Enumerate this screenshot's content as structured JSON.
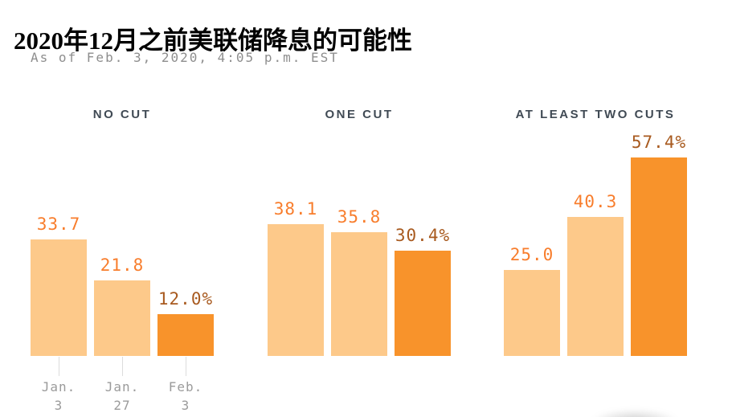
{
  "page": {
    "title": "2020年12月之前美联储降息的可能性",
    "subtitle": "As of Feb. 3, 2020, 4:05 p.m. EST"
  },
  "chart_data": {
    "type": "bar",
    "title": "2020年12月之前美联储降息的可能性",
    "subtitle": "As of Feb. 3, 2020, 4:05 p.m. EST",
    "unit": "percent probability",
    "ylim": [
      0,
      60
    ],
    "grid": false,
    "legend_position": "none",
    "x_categories": [
      "Jan. 3",
      "Jan. 27",
      "Feb. 3"
    ],
    "x_category_lines": [
      [
        "Jan.",
        "3"
      ],
      [
        "Jan.",
        "27"
      ],
      [
        "Feb.",
        "3"
      ]
    ],
    "axis_labels_only_on_first_group": true,
    "groups": [
      {
        "label": "NO CUT",
        "values": [
          33.7,
          21.8,
          12.0
        ],
        "value_labels": [
          "33.7",
          "21.8",
          "12.0%"
        ]
      },
      {
        "label": "ONE CUT",
        "values": [
          38.1,
          35.8,
          30.4
        ],
        "value_labels": [
          "38.1",
          "35.8",
          "30.4%"
        ]
      },
      {
        "label": "AT LEAST TWO CUTS",
        "values": [
          25.0,
          40.3,
          57.4
        ],
        "value_labels": [
          "25.0",
          "40.3",
          "57.4%"
        ]
      }
    ],
    "highlight": "last bar of each group (Feb. 3) is dark orange",
    "colors": {
      "bar_light": "#fdc98a",
      "bar_dark": "#f8932b",
      "value_label_light": "#f87d2c",
      "value_label_dark": "#a85a1f",
      "group_header_text": "#404a54",
      "axis_text": "#9b9b9b",
      "tick_line": "#dcdcdc",
      "subtitle_text": "#8e8e8e",
      "title_text": "#000000"
    }
  }
}
